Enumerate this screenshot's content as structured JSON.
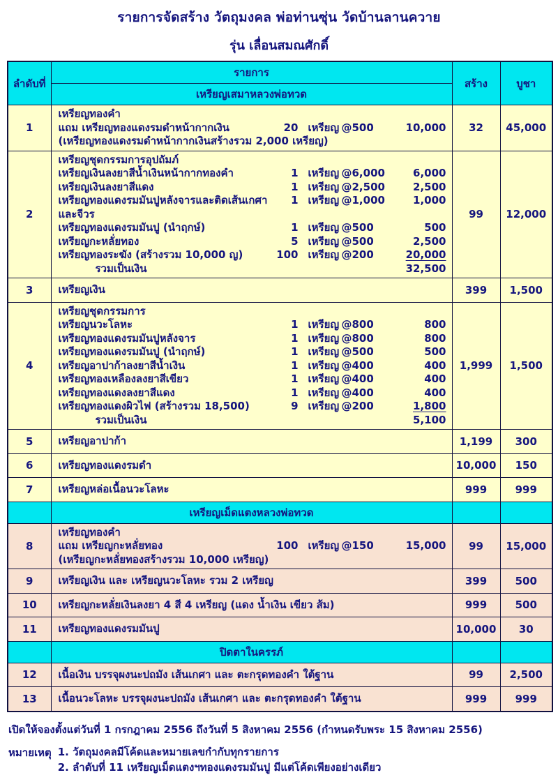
{
  "title": "รายการจัดสร้าง วัตถุมงคล พ่อท่านซุ่น วัดบ้านลานควาย",
  "subtitle": "รุ่น เลื่อนสมณศักดิ์",
  "colors": {
    "ink_navy": "#15157e",
    "section_header_bg": "#00e7f0",
    "row_bg_yellow": "#ffffcc",
    "row_bg_peach": "#f9e2d2",
    "border": "#101040"
  },
  "table": {
    "headers": {
      "no": "ลำดับที่",
      "item": "รายการ",
      "section1": "เหรียญเสมาหลวงพ่อทวด",
      "made": "สร้าง",
      "price": "บูชา"
    },
    "rows": [
      {
        "type": "item",
        "bg": "yellow",
        "no": "1",
        "made": "32",
        "price": "45,000",
        "lines": [
          {
            "text": "เหรียญทองคำ"
          },
          {
            "text": "แถม เหรียญทองแดงรมดำหน้ากากเงิน",
            "qty": "20",
            "unit": "เหรียญ",
            "at": "@500",
            "amount": "10,000"
          },
          {
            "text": "(เหรียญทองแดงรมดำหน้ากากเงินสร้างรวม 2,000 เหรียญ)"
          }
        ]
      },
      {
        "type": "item",
        "bg": "yellow",
        "no": "2",
        "made": "99",
        "price": "12,000",
        "lines": [
          {
            "text": "เหรียญชุดกรรมการอุปถัมภ์"
          },
          {
            "text": "เหรียญเงินลงยาสีน้ำเงินหน้ากากทองคำ",
            "qty": "1",
            "unit": "เหรียญ",
            "at": "@6,000",
            "amount": "6,000"
          },
          {
            "text": "เหรียญเงินลงยาสีแดง",
            "qty": "1",
            "unit": "เหรียญ",
            "at": "@2,500",
            "amount": "2,500"
          },
          {
            "text": "เหรียญทองแดงรมมันปูหลังจารและติดเส้นเกศาและจีวร",
            "qty": "1",
            "unit": "เหรียญ",
            "at": "@1,000",
            "amount": "1,000"
          },
          {
            "text": "เหรียญทองแดงรมมันปู (นำฤกษ์)",
            "qty": "1",
            "unit": "เหรียญ",
            "at": "@500",
            "amount": "500"
          },
          {
            "text": "เหรียญกะหลั่ยทอง",
            "qty": "5",
            "unit": "เหรียญ",
            "at": "@500",
            "amount": "2,500"
          },
          {
            "text": "เหรียญทองระฆัง (สร้างรวม 10,000 ญ)",
            "qty": "100",
            "unit": "เหรียญ",
            "at": "@200",
            "amount": "20,000",
            "underline": true
          },
          {
            "text": "รวมเป็นเงิน",
            "total": true,
            "amount": "32,500"
          }
        ]
      },
      {
        "type": "item",
        "bg": "yellow",
        "no": "3",
        "made": "399",
        "price": "1,500",
        "lines": [
          {
            "text": "เหรียญเงิน"
          }
        ]
      },
      {
        "type": "item",
        "bg": "yellow",
        "no": "4",
        "made": "1,999",
        "price": "1,500",
        "lines": [
          {
            "text": "เหรียญชุดกรรมการ"
          },
          {
            "text": "เหรียญนวะโลหะ",
            "qty": "1",
            "unit": "เหรียญ",
            "at": "@800",
            "amount": "800"
          },
          {
            "text": "เหรียญทองแดงรมมันปูหลังจาร",
            "qty": "1",
            "unit": "เหรียญ",
            "at": "@800",
            "amount": "800"
          },
          {
            "text": "เหรียญทองแดงรมมันปู (นำฤกษ์)",
            "qty": "1",
            "unit": "เหรียญ",
            "at": "@500",
            "amount": "500"
          },
          {
            "text": "เหรียญอาปาก้าลงยาสีน้ำเงิน",
            "qty": "1",
            "unit": "เหรียญ",
            "at": "@400",
            "amount": "400"
          },
          {
            "text": "เหรียญทองเหลืองลงยาสีเขียว",
            "qty": "1",
            "unit": "เหรียญ",
            "at": "@400",
            "amount": "400"
          },
          {
            "text": "เหรียญทองแดงลงยาสีแดง",
            "qty": "1",
            "unit": "เหรียญ",
            "at": "@400",
            "amount": "400"
          },
          {
            "text": "เหรียญทองแดงผิวไฟ (สร้างรวม 18,500)",
            "qty": "9",
            "unit": "เหรียญ",
            "at": "@200",
            "amount": "1,800",
            "underline": true
          },
          {
            "text": "รวมเป็นเงิน",
            "total": true,
            "amount": "5,100"
          }
        ]
      },
      {
        "type": "item",
        "bg": "yellow",
        "no": "5",
        "made": "1,199",
        "price": "300",
        "lines": [
          {
            "text": "เหรียญอาปาก้า"
          }
        ]
      },
      {
        "type": "item",
        "bg": "yellow",
        "no": "6",
        "made": "10,000",
        "price": "150",
        "lines": [
          {
            "text": "เหรียญทองแดงรมดำ"
          }
        ]
      },
      {
        "type": "item",
        "bg": "yellow",
        "no": "7",
        "made": "999",
        "price": "999",
        "lines": [
          {
            "text": "เหรียญหล่อเนื้อนวะโลหะ"
          }
        ]
      },
      {
        "type": "section",
        "title": "เหรียญเม็ดแตงหลวงพ่อทวด"
      },
      {
        "type": "item",
        "bg": "peach",
        "no": "8",
        "made": "99",
        "price": "15,000",
        "lines": [
          {
            "text": "เหรียญทองคำ"
          },
          {
            "text": "แถม เหรียญกะหลั่ยทอง",
            "qty": "100",
            "unit": "เหรียญ",
            "at": "@150",
            "amount": "15,000"
          },
          {
            "text": "(เหรียญกะหลั่ยทองสร้างรวม 10,000 เหรียญ)"
          }
        ]
      },
      {
        "type": "item",
        "bg": "peach",
        "no": "9",
        "made": "399",
        "price": "500",
        "lines": [
          {
            "text": "เหรียญเงิน และ เหรียญนวะโลหะ รวม 2 เหรียญ"
          }
        ]
      },
      {
        "type": "item",
        "bg": "peach",
        "no": "10",
        "made": "999",
        "price": "500",
        "lines": [
          {
            "text": "เหรียญกะหลั่ยเงินลงยา 4 สี 4 เหรียญ (แดง น้ำเงิน เขียว ส้ม)"
          }
        ]
      },
      {
        "type": "item",
        "bg": "peach",
        "no": "11",
        "made": "10,000",
        "price": "30",
        "lines": [
          {
            "text": "เหรียญทองแดงรมมันปู"
          }
        ]
      },
      {
        "type": "section",
        "title": "ปิดตาในครรภ์"
      },
      {
        "type": "item",
        "bg": "peach",
        "no": "12",
        "made": "99",
        "price": "2,500",
        "lines": [
          {
            "text": "เนื้อเงิน บรรจุผงนะปถมัง เส้นเกศา และ ตะกรุดทองคำ ใต้ฐาน"
          }
        ]
      },
      {
        "type": "item",
        "bg": "peach",
        "no": "13",
        "made": "999",
        "price": "999",
        "lines": [
          {
            "text": "เนื้อนวะโลหะ บรรจุผงนะปถมัง เส้นเกศา และ ตะกรุดทองคำ ใต้ฐาน"
          }
        ]
      }
    ]
  },
  "footer": {
    "booking": "เปิดให้จองตั้งแต่วันที่ 1 กรกฎาคม 2556 ถึงวันที่ 5 สิงหาคม 2556 (กำหนดรับพระ 15 สิงหาคม 2556)",
    "note_label": "หมายเหตุ",
    "note1": "1. วัตถุมงคลมีโค้ดและหมายเลขกำกับทุกรายการ",
    "note2": "2. ลำดับที่ 11 เหรียญเม็ดแตงฯทองแดงรมมันปู มีแต่โค้ดเพียงอย่างเดียว"
  }
}
